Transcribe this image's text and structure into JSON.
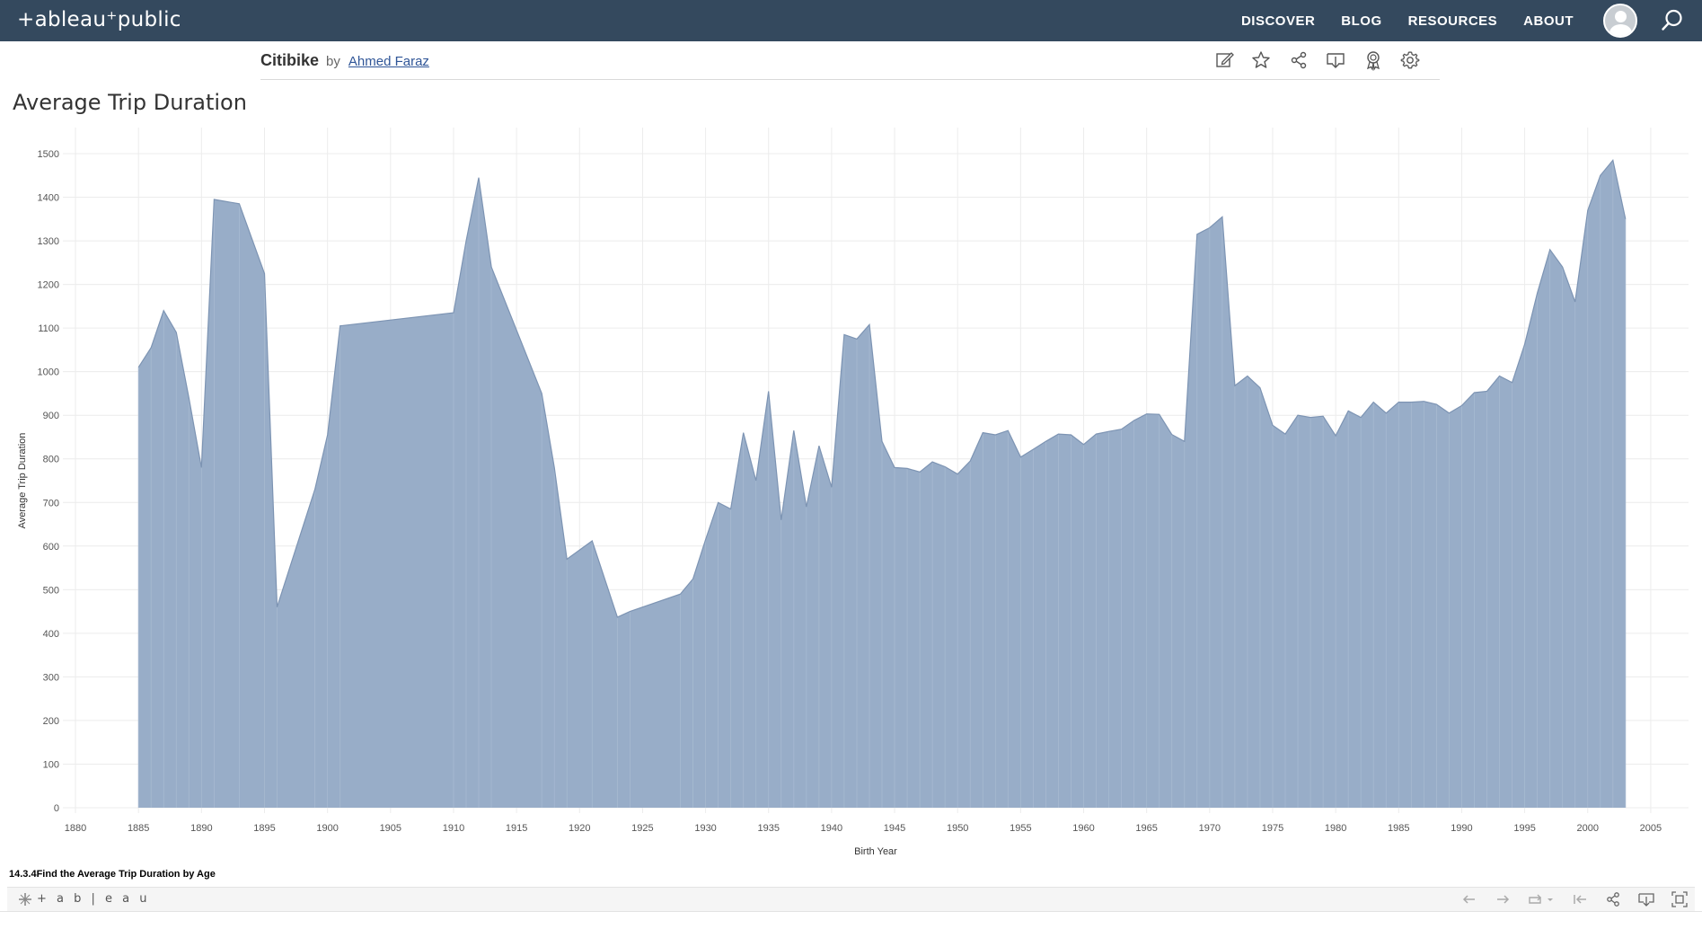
{
  "nav": {
    "logo": "+ableau⁺public",
    "links": [
      "DISCOVER",
      "BLOG",
      "RESOURCES",
      "ABOUT"
    ]
  },
  "viz": {
    "name": "Citibike",
    "by": "by",
    "author": "Ahmed Faraz"
  },
  "caption": "14.3.4Find the Average Trip Duration by Age",
  "toolbar": {
    "logo": "+ a b | e a u"
  },
  "colors": {
    "nav_bg": "#34495e",
    "area_fill": "#98adc8",
    "area_line": "#7d94b3",
    "grid": "#ececec"
  },
  "chart_data": {
    "type": "area",
    "title": "Average Trip Duration",
    "xlabel": "Birth Year",
    "ylabel": "Average Trip Duration",
    "xlim": [
      1879,
      2008
    ],
    "ylim": [
      0,
      1500
    ],
    "xticks": [
      1880,
      1885,
      1890,
      1895,
      1900,
      1905,
      1910,
      1915,
      1920,
      1925,
      1930,
      1935,
      1940,
      1945,
      1950,
      1955,
      1960,
      1965,
      1970,
      1975,
      1980,
      1985,
      1990,
      1995,
      2000,
      2005
    ],
    "yticks": [
      0,
      100,
      200,
      300,
      400,
      500,
      600,
      700,
      800,
      900,
      1000,
      1100,
      1200,
      1300,
      1400,
      1500
    ],
    "grid": true,
    "x": [
      1885,
      1886,
      1887,
      1888,
      1889,
      1890,
      1891,
      1893,
      1895,
      1896,
      1899,
      1900,
      1901,
      1910,
      1911,
      1912,
      1913,
      1917,
      1918,
      1919,
      1921,
      1923,
      1924,
      1928,
      1929,
      1930,
      1931,
      1932,
      1933,
      1934,
      1935,
      1936,
      1937,
      1938,
      1939,
      1940,
      1941,
      1942,
      1943,
      1944,
      1945,
      1946,
      1947,
      1948,
      1949,
      1950,
      1951,
      1952,
      1953,
      1954,
      1955,
      1956,
      1957,
      1958,
      1959,
      1960,
      1961,
      1962,
      1963,
      1964,
      1965,
      1966,
      1967,
      1968,
      1969,
      1970,
      1971,
      1972,
      1973,
      1974,
      1975,
      1976,
      1977,
      1978,
      1979,
      1980,
      1981,
      1982,
      1983,
      1984,
      1985,
      1986,
      1987,
      1988,
      1989,
      1990,
      1991,
      1992,
      1993,
      1994,
      1995,
      1996,
      1997,
      1998,
      1999,
      2000,
      2001,
      2002,
      2003
    ],
    "values": [
      1010,
      1055,
      1140,
      1090,
      940,
      780,
      1395,
      1385,
      1225,
      460,
      730,
      855,
      1105,
      1135,
      1300,
      1445,
      1240,
      950,
      780,
      570,
      612,
      437,
      450,
      490,
      525,
      615,
      700,
      685,
      860,
      750,
      955,
      660,
      865,
      690,
      830,
      735,
      1085,
      1075,
      1108,
      840,
      780,
      778,
      770,
      793,
      782,
      765,
      795,
      860,
      855,
      865,
      804,
      822,
      840,
      857,
      855,
      833,
      857,
      863,
      868,
      888,
      903,
      902,
      856,
      840,
      1315,
      1330,
      1355,
      968,
      990,
      963,
      877,
      857,
      900,
      895,
      898,
      853,
      910,
      895,
      930,
      905,
      930,
      930,
      932,
      925,
      905,
      922,
      952,
      955,
      990,
      975,
      1063,
      1180,
      1280,
      1240,
      1160,
      1370,
      1450,
      1485,
      1350
    ]
  }
}
